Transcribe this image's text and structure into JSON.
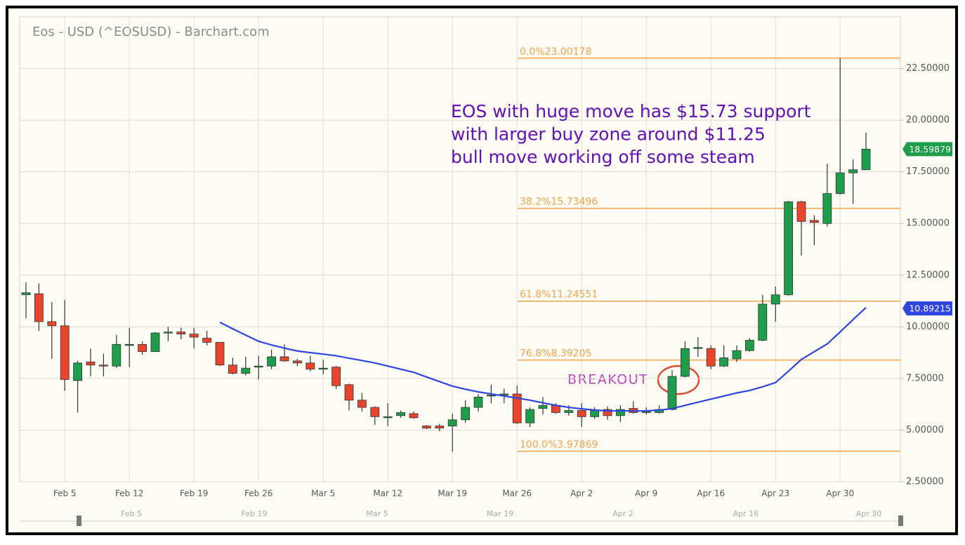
{
  "chart_data": {
    "type": "candlestick",
    "title": "Eos - USD (^EOSUSD) - Barchart.com",
    "categories": [
      null,
      null,
      null,
      "Feb 5",
      null,
      null,
      null,
      null,
      "Feb 12",
      null,
      null,
      null,
      null,
      "Feb 19",
      null,
      null,
      null,
      null,
      "Feb 26",
      null,
      null,
      null,
      null,
      "Mar 5",
      null,
      null,
      null,
      null,
      "Mar 12",
      null,
      null,
      null,
      null,
      "Mar 19",
      null,
      null,
      null,
      null,
      "Mar 26",
      null,
      null,
      null,
      null,
      "Apr 2",
      null,
      null,
      null,
      null,
      "Apr 9",
      null,
      null,
      null,
      null,
      "Apr 16",
      null,
      null,
      null,
      null,
      "Apr 23",
      null,
      null,
      null,
      null,
      "Apr 30",
      null,
      null
    ],
    "open": [
      11.55,
      11.6,
      10.25,
      10.05,
      7.4,
      8.3,
      8.15,
      8.1,
      9.1,
      9.15,
      8.8,
      9.7,
      9.75,
      9.65,
      9.45,
      9.25,
      8.15,
      7.75,
      8.05,
      8.1,
      8.55,
      8.35,
      8.25,
      7.95,
      8.05,
      7.2,
      6.45,
      6.1,
      5.65,
      5.7,
      5.8,
      5.2,
      5.2,
      5.2,
      5.5,
      6.1,
      6.65,
      6.7,
      6.75,
      5.35,
      6.05,
      6.2,
      5.85,
      5.95,
      5.65,
      6.0,
      5.7,
      6.05,
      5.85,
      5.85,
      6.0,
      7.6,
      8.95,
      8.95,
      8.1,
      8.45,
      8.85,
      9.35,
      11.1,
      11.55,
      16.05,
      15.15,
      15.0,
      16.45,
      17.45,
      17.6
    ],
    "high": [
      12.15,
      12.1,
      11.2,
      11.3,
      8.35,
      8.95,
      8.7,
      9.6,
      9.95,
      9.3,
      9.75,
      10.0,
      9.95,
      9.95,
      9.8,
      9.25,
      8.5,
      8.55,
      8.6,
      8.9,
      9.15,
      8.45,
      8.6,
      8.4,
      8.1,
      7.25,
      6.8,
      6.15,
      6.3,
      5.95,
      5.9,
      5.25,
      5.3,
      5.8,
      6.45,
      6.75,
      7.2,
      7.0,
      7.15,
      6.1,
      6.6,
      6.3,
      6.2,
      6.3,
      6.1,
      6.15,
      6.2,
      6.4,
      6.1,
      6.2,
      7.9,
      9.3,
      9.5,
      9.1,
      9.1,
      9.1,
      9.45,
      11.55,
      11.95,
      16.1,
      16.1,
      15.4,
      17.9,
      23.0,
      18.1,
      19.4
    ],
    "low": [
      10.4,
      9.8,
      8.45,
      6.9,
      5.85,
      7.6,
      7.6,
      8.0,
      8.05,
      8.65,
      8.8,
      9.3,
      9.4,
      8.95,
      9.1,
      8.1,
      7.7,
      7.65,
      7.45,
      7.95,
      8.3,
      8.1,
      7.85,
      7.7,
      7.0,
      5.95,
      5.9,
      5.25,
      5.2,
      5.6,
      5.55,
      5.05,
      4.95,
      3.95,
      5.35,
      5.9,
      6.3,
      6.3,
      5.3,
      5.15,
      5.75,
      5.8,
      5.7,
      5.15,
      5.55,
      5.5,
      5.4,
      5.8,
      5.75,
      5.8,
      5.95,
      7.55,
      8.55,
      7.95,
      8.05,
      8.3,
      8.8,
      9.3,
      10.25,
      11.5,
      13.45,
      13.95,
      14.85,
      16.4,
      15.95,
      17.6
    ],
    "close": [
      11.65,
      10.25,
      10.05,
      7.45,
      8.25,
      8.15,
      8.1,
      9.15,
      9.15,
      8.8,
      9.7,
      9.75,
      9.65,
      9.5,
      9.25,
      8.15,
      7.75,
      8.0,
      8.1,
      8.55,
      8.35,
      8.25,
      7.95,
      8.0,
      7.15,
      6.45,
      6.1,
      5.65,
      5.65,
      5.85,
      5.6,
      5.1,
      5.1,
      5.5,
      6.1,
      6.6,
      6.7,
      6.75,
      5.35,
      6.0,
      6.2,
      5.85,
      5.95,
      5.65,
      5.95,
      5.7,
      6.0,
      5.85,
      5.9,
      6.0,
      7.6,
      8.95,
      9.0,
      8.1,
      8.5,
      8.85,
      9.35,
      11.1,
      11.55,
      16.05,
      15.1,
      15.05,
      16.45,
      17.45,
      17.6,
      18.6
    ],
    "up_color": "#1e9e4a",
    "down_color": "#e8452c",
    "moving_average": {
      "color": "#2f45e0",
      "values": [
        null,
        null,
        null,
        null,
        null,
        null,
        null,
        null,
        null,
        null,
        null,
        null,
        null,
        null,
        null,
        10.22,
        9.9,
        9.6,
        9.3,
        9.12,
        8.97,
        8.83,
        8.75,
        8.68,
        8.6,
        8.48,
        8.37,
        8.25,
        8.1,
        7.95,
        7.8,
        7.57,
        7.35,
        7.13,
        6.98,
        6.85,
        6.75,
        6.65,
        6.55,
        6.45,
        6.32,
        6.2,
        6.1,
        6.03,
        5.97,
        5.93,
        5.93,
        5.93,
        5.93,
        5.97,
        6.04,
        6.2,
        6.35,
        6.5,
        6.65,
        6.8,
        6.92,
        7.1,
        7.3,
        7.85,
        8.42,
        8.8,
        9.17,
        9.75,
        10.35,
        10.93
      ]
    },
    "last_price_tag": {
      "value": 18.59879,
      "label": "18.59879",
      "color": "#1e9e4a"
    },
    "ma_tag": {
      "value": 10.89215,
      "label": "10.89215",
      "color": "#2f45e0"
    },
    "ylim": [
      2.5,
      25
    ],
    "yticks": [
      {
        "value": 2.5,
        "label": "2.50000"
      },
      {
        "value": 5,
        "label": "5.00000"
      },
      {
        "value": 7.5,
        "label": "7.50000"
      },
      {
        "value": 10,
        "label": "10.00000"
      },
      {
        "value": 12.5,
        "label": "12.50000"
      },
      {
        "value": 15,
        "label": "15.00000"
      },
      {
        "value": 17.5,
        "label": "17.50000"
      },
      {
        "value": 20,
        "label": "20.00000"
      },
      {
        "value": 22.5,
        "label": "22.50000"
      }
    ],
    "grid": true,
    "fib_color": "#f5a24a",
    "fib_levels": [
      {
        "value": 23.00178,
        "label": "0.0%23.00178"
      },
      {
        "value": 15.73496,
        "label": "38.2%15.73496"
      },
      {
        "value": 11.24551,
        "label": "61.8%11.24551"
      },
      {
        "value": 8.39205,
        "label": "76.8%8.39205"
      },
      {
        "value": 3.97869,
        "label": "100.0%3.97869"
      }
    ],
    "annotation": [
      "EOS with huge move has $15.73 support",
      "with larger buy zone around $11.25",
      "bull move working off some steam"
    ],
    "breakout_label": "BREAKOUT",
    "navigator_labels": [
      "Feb 5",
      "Feb 19",
      "Mar 5",
      "Mar 19",
      "Apr 2",
      "Apr 16",
      "Apr 30"
    ]
  }
}
